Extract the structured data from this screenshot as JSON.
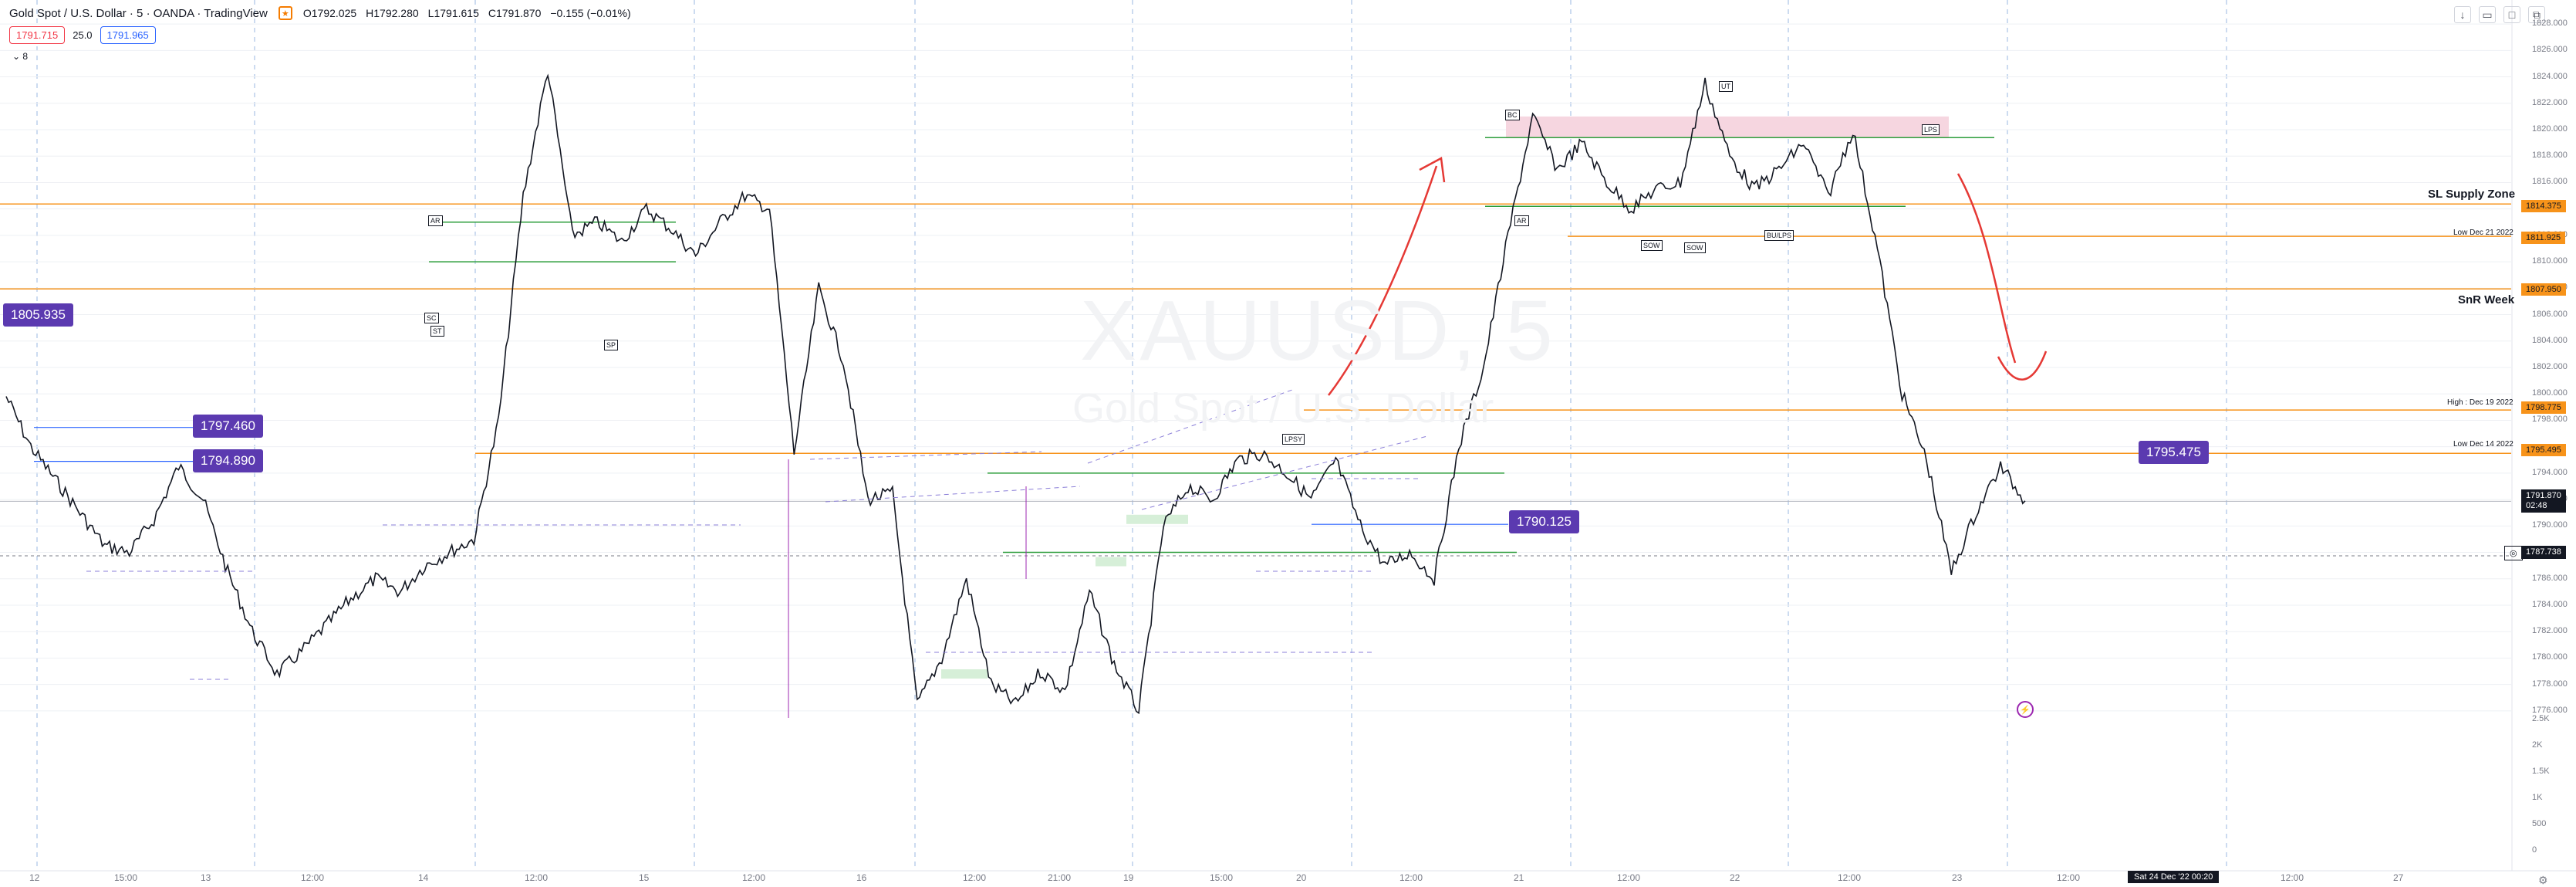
{
  "header": {
    "symbol_title": "Gold Spot / U.S. Dollar · 5 · OANDA · TradingView",
    "ohlc": [
      "O1792.025",
      "H1792.280",
      "L1791.615",
      "C1791.870",
      "−0.155 (−0.01%)"
    ]
  },
  "quote": {
    "sell": "1791.715",
    "spread": "25.0",
    "buy": "1791.965"
  },
  "indicator_count": "8",
  "watermark": {
    "ticker": "XAUUSD, 5",
    "name": "Gold Spot / U.S. Dollar"
  },
  "price_labels": [
    "1805.935",
    "1797.460",
    "1794.890",
    "1790.125",
    "1795.475"
  ],
  "annotations": {
    "sl_supply": "SL Supply Zone",
    "snr_week": "SnR Week",
    "low_dec21": "Low Dec 21 2022",
    "high_dec19": "High : Dec 19 2022",
    "low_dec14": "Low Dec 14 2022"
  },
  "wyckoff_labels": [
    "AR",
    "SC",
    "ST",
    "SP",
    "LPSY",
    "AR",
    "BC",
    "UT",
    "LPS",
    "SOW",
    "SOW",
    "BU/LPS"
  ],
  "price_axis": {
    "ticks": [
      "1828.000",
      "1826.000",
      "1824.000",
      "1822.000",
      "1820.000",
      "1818.000",
      "1816.000",
      "1812.000",
      "1810.000",
      "1808.000",
      "1806.000",
      "1804.000",
      "1802.000",
      "1800.000",
      "1798.000",
      "1794.000",
      "1792.000",
      "1790.000",
      "1786.000",
      "1784.000",
      "1782.000",
      "1780.000",
      "1778.000",
      "1776.000"
    ],
    "volume_ticks": [
      "2.5K",
      "2K",
      "1.5K",
      "1K",
      "500",
      "0"
    ],
    "badges": [
      "1814.375",
      "1811.925",
      "1807.950",
      "1798.775",
      "1795.495",
      "1787.738"
    ],
    "last_price": "1791.870",
    "countdown": "02:48"
  },
  "time_axis": {
    "labels": [
      "12",
      "15:00",
      "13",
      "12:00",
      "14",
      "12:00",
      "15",
      "12:00",
      "16",
      "12:00",
      "21:00",
      "19",
      "15:00",
      "20",
      "12:00",
      "21",
      "12:00",
      "22",
      "12:00",
      "23",
      "12:00",
      "12:00",
      "27"
    ],
    "cursor": "Sat 24 Dec '22   00:20"
  },
  "colors": {
    "orange": "#f7931a",
    "purple": "#5b3ab0",
    "red": "#e53935",
    "green": "#2e9e3c",
    "blue": "#2962ff"
  },
  "chart_data": {
    "type": "line",
    "series": [
      {
        "values": [
          1799.8,
          1796.0,
          1793.5,
          1791.0,
          1788.5,
          1788.0,
          1790.5,
          1794.5,
          1792.0,
          1786.5,
          1782.0,
          1778.8,
          1780.5,
          1782.5,
          1784.5,
          1786.0,
          1785.0,
          1787.0,
          1788.0,
          1789.0,
          1798.0,
          1815.0,
          1824.5,
          1812.0,
          1813.0,
          1811.5,
          1814.0,
          1812.5,
          1810.5,
          1813.0,
          1815.0,
          1814.0,
          1795.5,
          1808.0,
          1802.5,
          1792.0,
          1792.5,
          1776.5,
          1780.0,
          1786.0,
          1778.0,
          1776.5,
          1779.0,
          1777.5,
          1785.0,
          1779.5,
          1776.0,
          1790.0,
          1793.0,
          1792.0,
          1795.0,
          1795.5,
          1794.0,
          1792.0,
          1795.0,
          1790.0,
          1787.0,
          1788.0,
          1786.0,
          1796.0,
          1802.0,
          1812.0,
          1821.0,
          1817.0,
          1819.0,
          1816.0,
          1814.0,
          1815.5,
          1816.0,
          1823.5,
          1818.0,
          1815.5,
          1817.0,
          1819.0,
          1815.0,
          1820.0,
          1811.0,
          1800.0,
          1795.0,
          1786.5,
          1791.0,
          1794.5,
          1791.9
        ]
      }
    ],
    "ylim": [
      1775,
      1829
    ],
    "log_scale": false,
    "grid": true
  }
}
